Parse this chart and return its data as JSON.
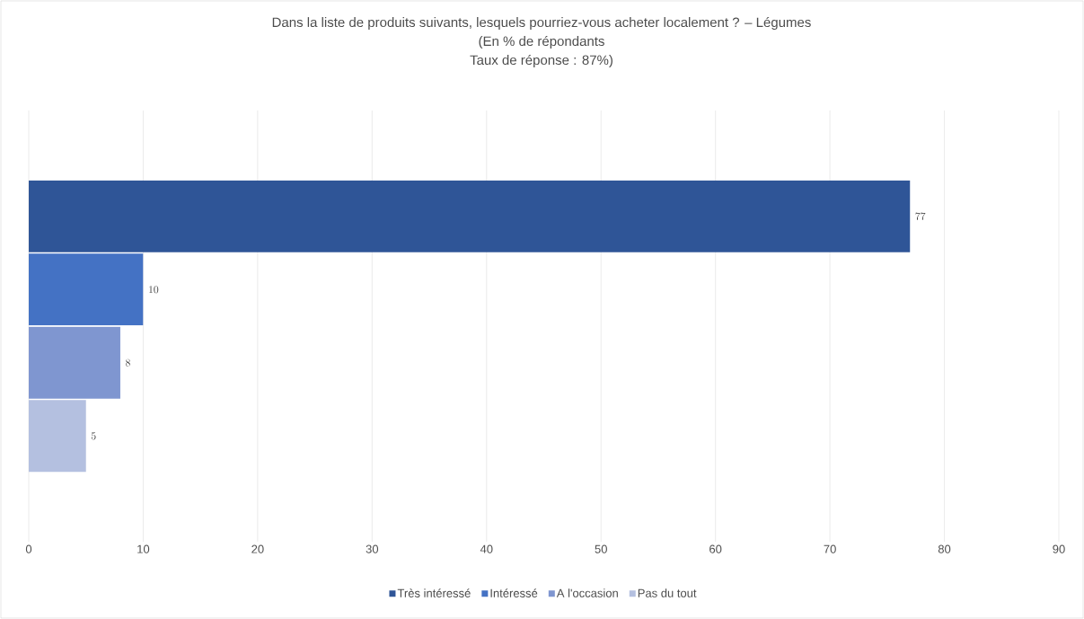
{
  "chart_data": {
    "type": "bar",
    "orientation": "horizontal",
    "title": "Dans la liste de produits suivants, lesquels pourriez-vous acheter localement ? – Légumes",
    "subtitle": "(En % de répondants",
    "annotations": [
      "Taux de réponse : 87%)"
    ],
    "categories": [
      null
    ],
    "series": [
      {
        "name": "Très intéressé",
        "color": "#2f5597",
        "values": [
          77
        ]
      },
      {
        "name": "Intéressé",
        "color": "#4472c4",
        "values": [
          10
        ]
      },
      {
        "name": "A l'occasion",
        "color": "#7f96d0",
        "values": [
          8
        ]
      },
      {
        "name": "Pas du tout",
        "color": "#b4c0e0",
        "values": [
          5
        ]
      }
    ],
    "xlim": [
      0,
      90
    ],
    "xticks": [
      0,
      10,
      20,
      30,
      40,
      50,
      60,
      70,
      80,
      90
    ],
    "grid": "x",
    "legend": "bottom",
    "data_labels": true,
    "tick_labels": "x"
  }
}
